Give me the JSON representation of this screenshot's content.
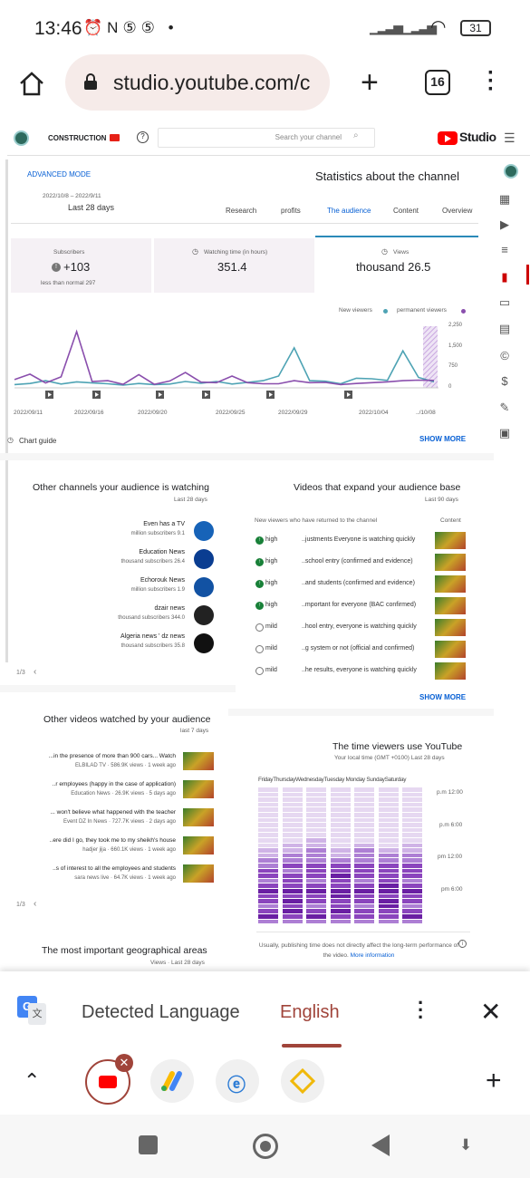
{
  "status": {
    "time": "13:46",
    "icons": "⏰N⑤⑤ •",
    "battery": "31"
  },
  "browser": {
    "url": "studio.youtube.com/c",
    "tab_count": "16"
  },
  "header": {
    "channel": "CONSTRUCTION",
    "search_placeholder": "Search your channel",
    "studio": "Studio"
  },
  "mode": "ADVANCED MODE",
  "title": "Statistics about the channel",
  "date_range": "2022/10/8 – 2022/9/11",
  "period": "Last 28 days",
  "tabs": [
    "Research",
    "profits",
    "The audience",
    "Content",
    "Overview"
  ],
  "stats": {
    "subs_label": "Subscribers",
    "subs_value": "+103",
    "subs_note": "less than normal 297",
    "watch_label": "Watching time (in hours)",
    "watch_value": "351.4",
    "views_label": "Views",
    "views_value": "thousand 26.5"
  },
  "chart_data": {
    "type": "line",
    "legend": [
      "New viewers",
      "permanent viewers"
    ],
    "x_labels": [
      "2022/09/11",
      "2022/09/16",
      "2022/09/20",
      "2022/09/25",
      "2022/09/29",
      "2022/10/04",
      "../10/08"
    ],
    "y_ticks": [
      "2,250",
      "1,500",
      "750",
      "0"
    ],
    "series": [
      {
        "name": "New viewers",
        "color": "#4ea3b4",
        "values": [
          120,
          160,
          260,
          140,
          220,
          180,
          150,
          100,
          160,
          120,
          140,
          230,
          170,
          230,
          140,
          200,
          260,
          430,
          1460,
          260,
          240,
          150,
          350,
          330,
          270,
          1350,
          380,
          220
        ]
      },
      {
        "name": "permanent viewers",
        "color": "#8a4fad",
        "values": [
          300,
          500,
          180,
          400,
          2050,
          230,
          260,
          130,
          480,
          130,
          250,
          560,
          210,
          190,
          430,
          190,
          150,
          150,
          260,
          190,
          200,
          120,
          160,
          190,
          220,
          260,
          280,
          270
        ]
      }
    ]
  },
  "chart_guide": "Chart guide",
  "show_more": "SHOW MORE",
  "other_channels": {
    "title": "Other channels your audience is watching",
    "sub": "Last 28 days",
    "items": [
      {
        "name": "Even has a TV",
        "subs": "million subscribers 9.1"
      },
      {
        "name": "Education News",
        "subs": "thousand subscribers 26.4"
      },
      {
        "name": "Echorouk News",
        "subs": "million subscribers 1.9"
      },
      {
        "name": "dzair news",
        "subs": "thousand subscribers 344.0"
      },
      {
        "name": "Algeria news ' dz news",
        "subs": "thousand subscribers 35.8"
      }
    ],
    "pager": "1/3"
  },
  "expand": {
    "title": "Videos that expand your audience base",
    "sub": "Last 90 days",
    "col1": "New viewers who have returned to the channel",
    "col2": "Content",
    "items": [
      {
        "level": "high",
        "text": "..justments Everyone is watching quickly"
      },
      {
        "level": "high",
        "text": "..school entry (confirmed and evidence)"
      },
      {
        "level": "high",
        "text": "..and students (confirmed and evidence)"
      },
      {
        "level": "high",
        "text": "..mportant for everyone (BAC confirmed)"
      },
      {
        "level": "mild",
        "text": "..hool entry, everyone is watching quickly"
      },
      {
        "level": "mild",
        "text": "..g system or not (official and confirmed)"
      },
      {
        "level": "mild",
        "text": "..he results, everyone is watching quickly"
      }
    ],
    "show_more": "SHOW MORE"
  },
  "other_videos": {
    "title": "Other videos watched by your audience",
    "sub": "last 7 days",
    "items": [
      {
        "title": "...in the presence of more than 900 cars... Watch",
        "meta": "ELBILAD TV · 586.9K views · 1 week ago"
      },
      {
        "title": "..r employees (happy in the case of application)",
        "meta": "Education News · 26.9K views · 5 days ago"
      },
      {
        "title": "... won't believe what happened with the teacher",
        "meta": "Event DZ In News · 727.7K views · 2 days ago"
      },
      {
        "title": "..ere did I go, they took me to my sheikh's house",
        "meta": "hadjer jija · 660.1K views · 1 week ago"
      },
      {
        "title": "..s of interest to all the employees and students",
        "meta": "sara news live · 64.7K views · 1 week ago"
      }
    ],
    "pager": "1/3"
  },
  "time_use": {
    "title": "The time viewers use YouTube",
    "sub": "Your local time (GMT +0100) Last 28 days",
    "days": "FridayThursdayWednesdayTuesday Monday SundaySaturday",
    "hours": [
      "p.m 12:00",
      "p.m 6:00",
      "pm 12:00",
      "pm 6:00"
    ],
    "note": "Usually, publishing time does not directly affect the long-term performance of the video.",
    "more": "More information"
  },
  "geo": {
    "title": "The most important geographical areas",
    "sub": "Views · Last 28 days"
  },
  "translate": {
    "detected": "Detected Language",
    "target": "English"
  }
}
